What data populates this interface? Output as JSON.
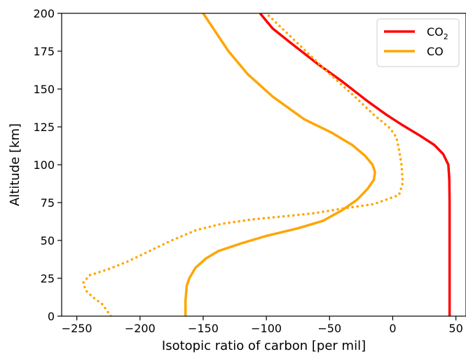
{
  "chart_data": {
    "type": "line",
    "xlabel": "Isotopic ratio of carbon [per mil]",
    "ylabel": "Altitude [km]",
    "xlim": [
      -262,
      58
    ],
    "ylim": [
      0,
      200
    ],
    "xticks": [
      -250,
      -200,
      -150,
      -100,
      -50,
      0,
      50
    ],
    "xtick_labels": [
      "−250",
      "−200",
      "−150",
      "−100",
      "−50",
      "0",
      "50"
    ],
    "yticks": [
      0,
      25,
      50,
      75,
      100,
      125,
      150,
      175,
      200
    ],
    "ytick_labels": [
      "0",
      "25",
      "50",
      "75",
      "100",
      "125",
      "150",
      "175",
      "200"
    ],
    "grid": false,
    "legend": {
      "placement": "top-right",
      "entries": [
        {
          "label": "CO",
          "subscript": "2",
          "color": "#ff0000"
        },
        {
          "label": "CO",
          "subscript": "",
          "color": "#ffa500"
        }
      ]
    },
    "series": [
      {
        "name": "CO2",
        "color": "#ff0000",
        "style": "solid",
        "points": [
          [
            45,
            0
          ],
          [
            45,
            25
          ],
          [
            45,
            50
          ],
          [
            45,
            75
          ],
          [
            44.8,
            90
          ],
          [
            44,
            100
          ],
          [
            40,
            107
          ],
          [
            33,
            113
          ],
          [
            22,
            119
          ],
          [
            8,
            126
          ],
          [
            -5,
            133
          ],
          [
            -20,
            142
          ],
          [
            -40,
            155
          ],
          [
            -60,
            167
          ],
          [
            -80,
            180
          ],
          [
            -95,
            190
          ],
          [
            -105,
            200
          ]
        ]
      },
      {
        "name": "CO",
        "color": "#ffa500",
        "style": "solid",
        "points": [
          [
            -164,
            0
          ],
          [
            -164,
            10
          ],
          [
            -163,
            20
          ],
          [
            -161,
            25
          ],
          [
            -156,
            32
          ],
          [
            -148,
            38
          ],
          [
            -138,
            43
          ],
          [
            -120,
            48
          ],
          [
            -100,
            53
          ],
          [
            -75,
            58
          ],
          [
            -55,
            63
          ],
          [
            -40,
            70
          ],
          [
            -28,
            77
          ],
          [
            -20,
            84
          ],
          [
            -15,
            90
          ],
          [
            -14,
            95
          ],
          [
            -16,
            100
          ],
          [
            -22,
            106
          ],
          [
            -32,
            113
          ],
          [
            -48,
            121
          ],
          [
            -70,
            130
          ],
          [
            -95,
            145
          ],
          [
            -115,
            160
          ],
          [
            -130,
            175
          ],
          [
            -142,
            190
          ],
          [
            -150,
            200
          ]
        ]
      },
      {
        "name": "CO dotted",
        "color": "#ffa500",
        "style": "dotted",
        "points": [
          [
            -223,
            0
          ],
          [
            -230,
            8
          ],
          [
            -238,
            13
          ],
          [
            -243,
            17
          ],
          [
            -245,
            22
          ],
          [
            -240,
            27
          ],
          [
            -225,
            31
          ],
          [
            -210,
            36
          ],
          [
            -195,
            42
          ],
          [
            -175,
            50
          ],
          [
            -155,
            57
          ],
          [
            -135,
            61
          ],
          [
            -110,
            64
          ],
          [
            -85,
            66
          ],
          [
            -62,
            68
          ],
          [
            -40,
            71
          ],
          [
            -15,
            74
          ],
          [
            5,
            80
          ],
          [
            8,
            88
          ],
          [
            7,
            100
          ],
          [
            5,
            110
          ],
          [
            3,
            118
          ],
          [
            -2,
            124
          ],
          [
            -15,
            133
          ],
          [
            -30,
            145
          ],
          [
            -50,
            160
          ],
          [
            -75,
            180
          ],
          [
            -100,
            200
          ]
        ]
      }
    ]
  }
}
